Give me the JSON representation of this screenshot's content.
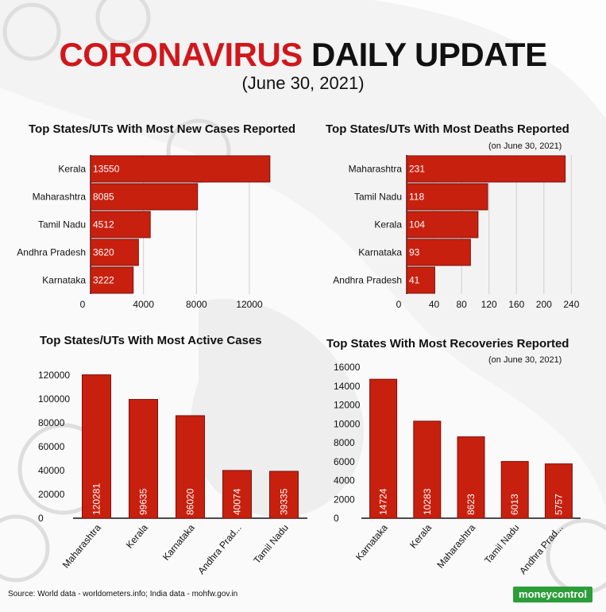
{
  "header": {
    "title_red": "CORONAVIRUS",
    "title_black": "DAILY UPDATE",
    "date": "(June 30, 2021)"
  },
  "footer": {
    "source": "Source: World data - worldometers.info; India data - mohfw.gov.in",
    "logo": "moneycontrol"
  },
  "colors": {
    "bar": "#c8200f",
    "bar_stroke": "#7a0f08",
    "title_red": "#d0171b",
    "logo_green": "#2d9d3a"
  },
  "chart_data": [
    {
      "id": "new-cases",
      "type": "bar",
      "orientation": "horizontal",
      "title": "Top States/UTs With Most New Cases Reported",
      "note": "",
      "categories": [
        "Kerala",
        "Maharashtra",
        "Tamil Nadu",
        "Andhra Pradesh",
        "Karnataka"
      ],
      "values": [
        13550,
        8085,
        4512,
        3620,
        3222
      ],
      "data_labels": [
        "13550",
        "8085",
        "4512",
        "3620",
        "3222"
      ],
      "ticks": [
        0,
        4000,
        8000,
        12000
      ],
      "tick_labels": [
        "0",
        "4000",
        "8000",
        "12000"
      ],
      "xlim": [
        0,
        14400
      ],
      "grid": true
    },
    {
      "id": "deaths",
      "type": "bar",
      "orientation": "horizontal",
      "title": "Top States/UTs With Most Deaths Reported",
      "note": "(on June 30, 2021)",
      "categories": [
        "Maharashtra",
        "Tamil Nadu",
        "Kerala",
        "Karnataka",
        "Andhra Pradesh"
      ],
      "values": [
        231,
        118,
        104,
        93,
        41
      ],
      "data_labels": [
        "231",
        "118",
        "104",
        "93",
        "41"
      ],
      "ticks": [
        0,
        40,
        80,
        120,
        160,
        200,
        240
      ],
      "tick_labels": [
        "0",
        "40",
        "80",
        "120",
        "160",
        "200",
        "240"
      ],
      "xlim": [
        0,
        250
      ],
      "grid": true
    },
    {
      "id": "active-cases",
      "type": "bar",
      "orientation": "vertical",
      "title": "Top States/UTs With Most Active Cases",
      "note": "",
      "categories": [
        "Maharashtra",
        "Kerala",
        "Karnataka",
        "Andhra Prad...",
        "Tamil Nadu"
      ],
      "values": [
        120281,
        99635,
        86020,
        40074,
        39335
      ],
      "data_labels": [
        "120281",
        "99635",
        "86020",
        "40074",
        "39335"
      ],
      "ticks": [
        0,
        20000,
        40000,
        60000,
        80000,
        100000,
        120000
      ],
      "tick_labels": [
        "0",
        "20000",
        "40000",
        "60000",
        "80000",
        "100000",
        "120000"
      ],
      "ylim": [
        0,
        120000
      ],
      "grid": false
    },
    {
      "id": "recoveries",
      "type": "bar",
      "orientation": "vertical",
      "title": "Top States With Most Recoveries Reported",
      "note": "(on June 30, 2021)",
      "categories": [
        "Karnataka",
        "Kerala",
        "Maharashtra",
        "Tamil Nadu",
        "Andhra Prad..."
      ],
      "values": [
        14724,
        10283,
        8623,
        6013,
        5757
      ],
      "data_labels": [
        "14724",
        "10283",
        "8623",
        "6013",
        "5757"
      ],
      "ticks": [
        0,
        2000,
        4000,
        6000,
        8000,
        10000,
        12000,
        14000,
        16000
      ],
      "tick_labels": [
        "0",
        "2000",
        "4000",
        "6000",
        "8000",
        "10000",
        "12000",
        "14000",
        "16000"
      ],
      "ylim": [
        0,
        16000
      ],
      "grid": false
    }
  ]
}
